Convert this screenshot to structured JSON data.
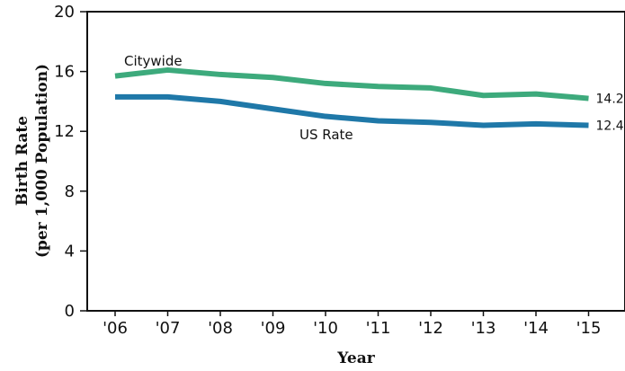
{
  "chart_data": {
    "type": "line",
    "x": [
      "'06",
      "'07",
      "'08",
      "'09",
      "'10",
      "'11",
      "'12",
      "'13",
      "'14",
      "'15"
    ],
    "series": [
      {
        "name": "Citywide",
        "values": [
          15.7,
          16.1,
          15.8,
          15.6,
          15.2,
          15.0,
          14.9,
          14.4,
          14.5,
          14.2
        ],
        "color": "#3daa7c",
        "end_label": "14.2"
      },
      {
        "name": "US Rate",
        "values": [
          14.3,
          14.3,
          14.0,
          13.5,
          13.0,
          12.7,
          12.6,
          12.4,
          12.5,
          12.4
        ],
        "color": "#1f78a8",
        "end_label": "12.4"
      }
    ],
    "yticks": [
      0,
      4,
      8,
      12,
      16,
      20
    ],
    "ylim": [
      0,
      20
    ],
    "xlabel": "Year",
    "ylabel": "Birth Rate\n(per 1,000 Population)",
    "grid": false
  }
}
